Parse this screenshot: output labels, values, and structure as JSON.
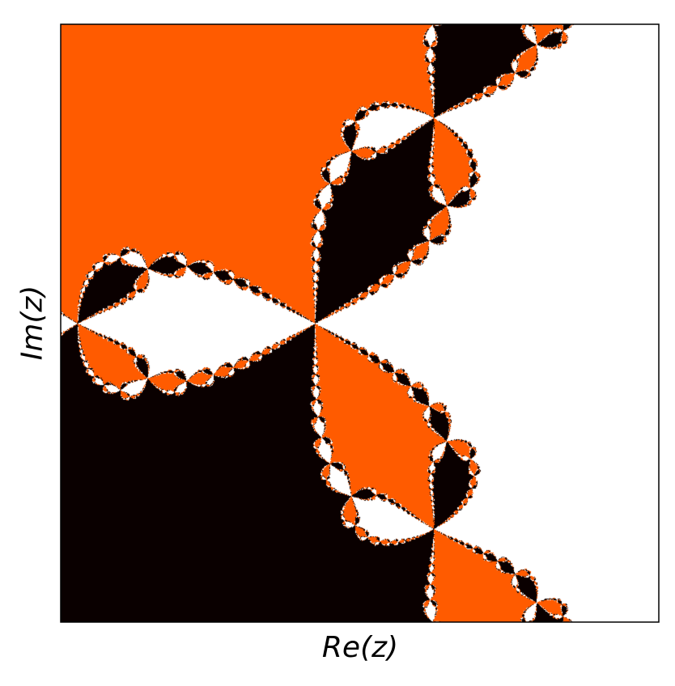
{
  "chart_data": {
    "type": "heatmap",
    "description_kind": "Newton fractal basins of attraction",
    "xlabel": "Re(z)",
    "ylabel": "Im(z)",
    "colors": {
      "basin_a": "#ff5b00",
      "basin_b": "#0a0000",
      "basin_c": "#ffffff",
      "frame": "#000000"
    },
    "grid": false,
    "ticks": false,
    "legend": "none"
  }
}
